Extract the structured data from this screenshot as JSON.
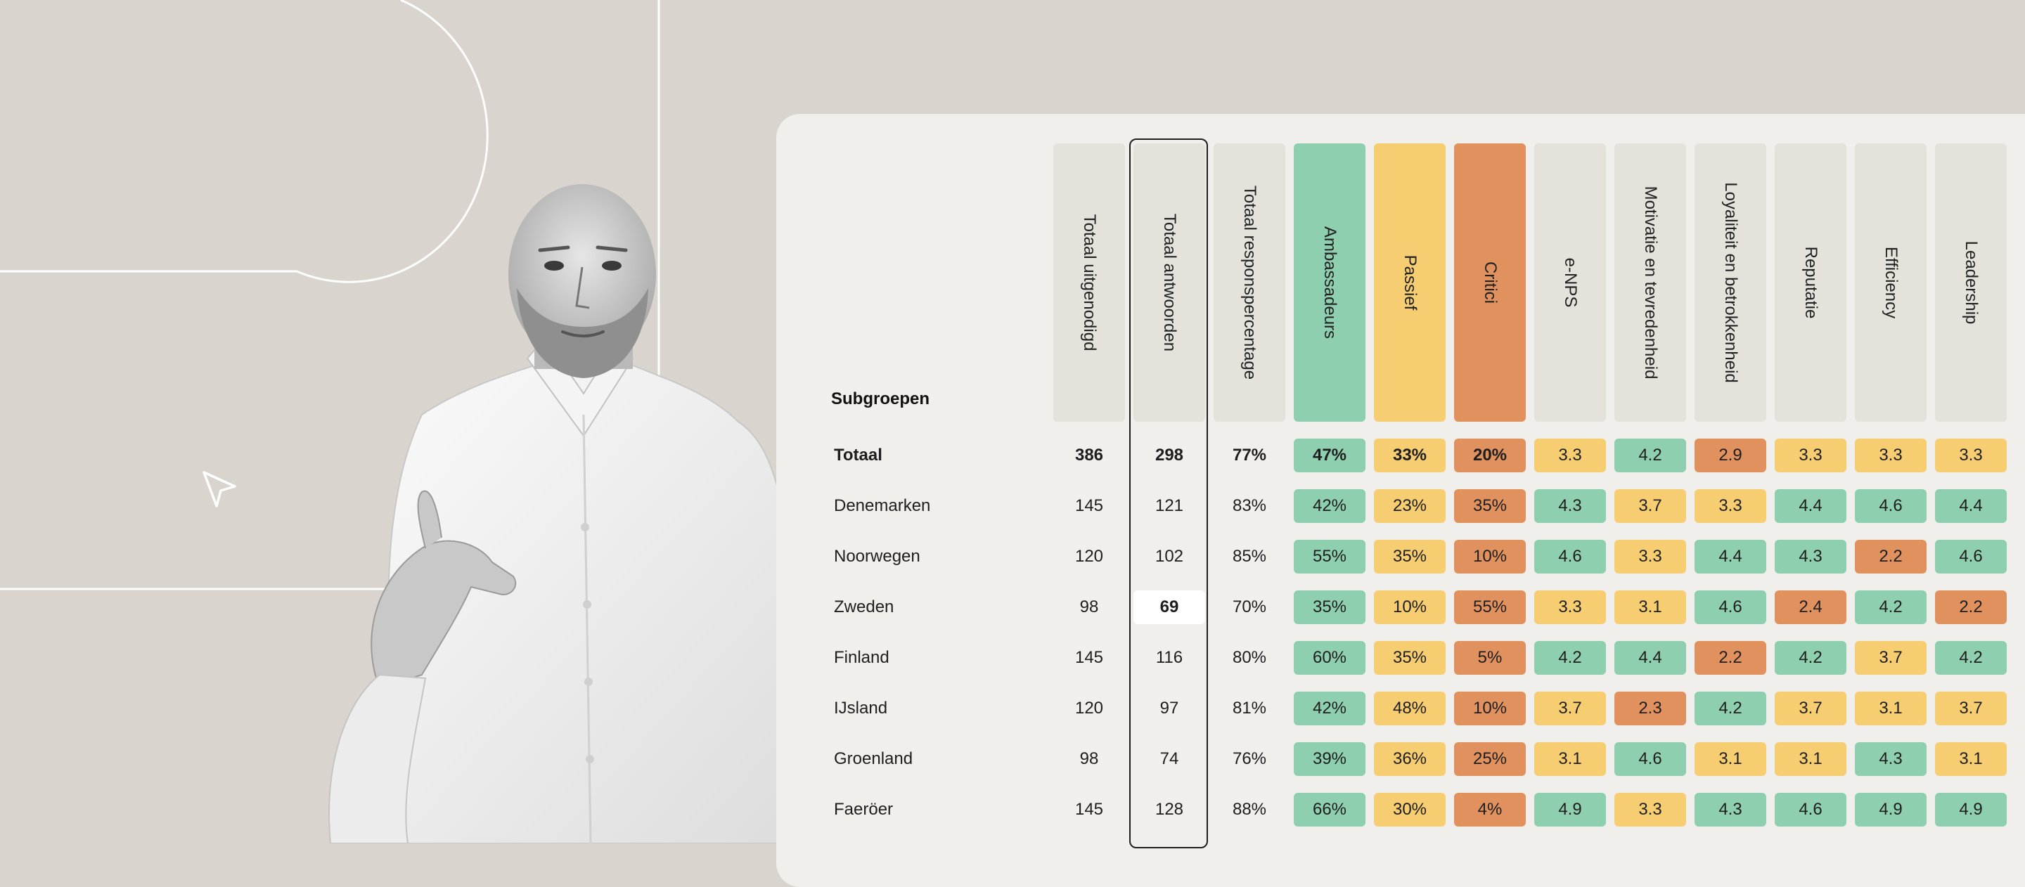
{
  "table": {
    "subgroups_title": "Subgroepen",
    "columns": [
      {
        "label": "Totaal uitgenodigd",
        "tone": "plain"
      },
      {
        "label": "Totaal antwoorden",
        "tone": "plain"
      },
      {
        "label": "Totaal responspercentage",
        "tone": "plain"
      },
      {
        "label": "Ambassadeurs",
        "tone": "green"
      },
      {
        "label": "Passief",
        "tone": "yellow"
      },
      {
        "label": "Critici",
        "tone": "orange"
      },
      {
        "label": "e-NPS",
        "tone": "plain"
      },
      {
        "label": "Motivatie en tevredenheid",
        "tone": "plain"
      },
      {
        "label": "Loyaliteit en betrokkenheid",
        "tone": "plain"
      },
      {
        "label": "Reputatie",
        "tone": "plain"
      },
      {
        "label": "Efficiency",
        "tone": "plain"
      },
      {
        "label": "Leadership",
        "tone": "plain"
      }
    ],
    "highlighted_column": "Totaal antwoorden",
    "highlighted_cell": {
      "row": "Zweden",
      "value": "69"
    },
    "colors": {
      "green": "#8ecfb0",
      "yellow": "#f7cd72",
      "orange": "#e0915e",
      "panel": "#f0efeb",
      "background": "#d9d5ce"
    },
    "rows": [
      {
        "name": "Totaal",
        "bold": true,
        "values": [
          "386",
          "298",
          "77%",
          "47%",
          "33%",
          "20%",
          "3.3",
          "4.2",
          "2.9",
          "3.3",
          "3.3",
          "3.3"
        ],
        "tones": [
          "",
          "",
          "",
          "green",
          "yellow",
          "orange",
          "yellow",
          "green",
          "orange",
          "yellow",
          "yellow",
          "yellow"
        ]
      },
      {
        "name": "Denemarken",
        "bold": false,
        "values": [
          "145",
          "121",
          "83%",
          "42%",
          "23%",
          "35%",
          "4.3",
          "3.7",
          "3.3",
          "4.4",
          "4.6",
          "4.4"
        ],
        "tones": [
          "",
          "",
          "",
          "green",
          "yellow",
          "orange",
          "green",
          "yellow",
          "yellow",
          "green",
          "green",
          "green"
        ]
      },
      {
        "name": "Noorwegen",
        "bold": false,
        "values": [
          "120",
          "102",
          "85%",
          "55%",
          "35%",
          "10%",
          "4.6",
          "3.3",
          "4.4",
          "4.3",
          "2.2",
          "4.6"
        ],
        "tones": [
          "",
          "",
          "",
          "green",
          "yellow",
          "orange",
          "green",
          "yellow",
          "green",
          "green",
          "orange",
          "green"
        ]
      },
      {
        "name": "Zweden",
        "bold": false,
        "values": [
          "98",
          "69",
          "70%",
          "35%",
          "10%",
          "55%",
          "3.3",
          "3.1",
          "4.6",
          "2.4",
          "4.2",
          "2.2"
        ],
        "tones": [
          "",
          "white",
          "",
          "green",
          "yellow",
          "orange",
          "yellow",
          "yellow",
          "green",
          "orange",
          "green",
          "orange"
        ]
      },
      {
        "name": "Finland",
        "bold": false,
        "values": [
          "145",
          "116",
          "80%",
          "60%",
          "35%",
          "5%",
          "4.2",
          "4.4",
          "2.2",
          "4.2",
          "3.7",
          "4.2"
        ],
        "tones": [
          "",
          "",
          "",
          "green",
          "yellow",
          "orange",
          "green",
          "green",
          "orange",
          "green",
          "yellow",
          "green"
        ]
      },
      {
        "name": "IJsland",
        "bold": false,
        "values": [
          "120",
          "97",
          "81%",
          "42%",
          "48%",
          "10%",
          "3.7",
          "2.3",
          "4.2",
          "3.7",
          "3.1",
          "3.7"
        ],
        "tones": [
          "",
          "",
          "",
          "green",
          "yellow",
          "orange",
          "yellow",
          "orange",
          "green",
          "yellow",
          "yellow",
          "yellow"
        ]
      },
      {
        "name": "Groenland",
        "bold": false,
        "values": [
          "98",
          "74",
          "76%",
          "39%",
          "36%",
          "25%",
          "3.1",
          "4.6",
          "3.1",
          "3.1",
          "4.3",
          "3.1"
        ],
        "tones": [
          "",
          "",
          "",
          "green",
          "yellow",
          "orange",
          "yellow",
          "green",
          "yellow",
          "yellow",
          "green",
          "yellow"
        ]
      },
      {
        "name": "Faeröer",
        "bold": false,
        "values": [
          "145",
          "128",
          "88%",
          "66%",
          "30%",
          "4%",
          "4.9",
          "3.3",
          "4.3",
          "4.6",
          "4.9",
          "4.9"
        ],
        "tones": [
          "",
          "",
          "",
          "green",
          "yellow",
          "orange",
          "green",
          "yellow",
          "green",
          "green",
          "green",
          "green"
        ]
      }
    ]
  },
  "decor": {
    "cursor_icon": "cursor-arrow-icon",
    "person": "presenter-photo"
  }
}
